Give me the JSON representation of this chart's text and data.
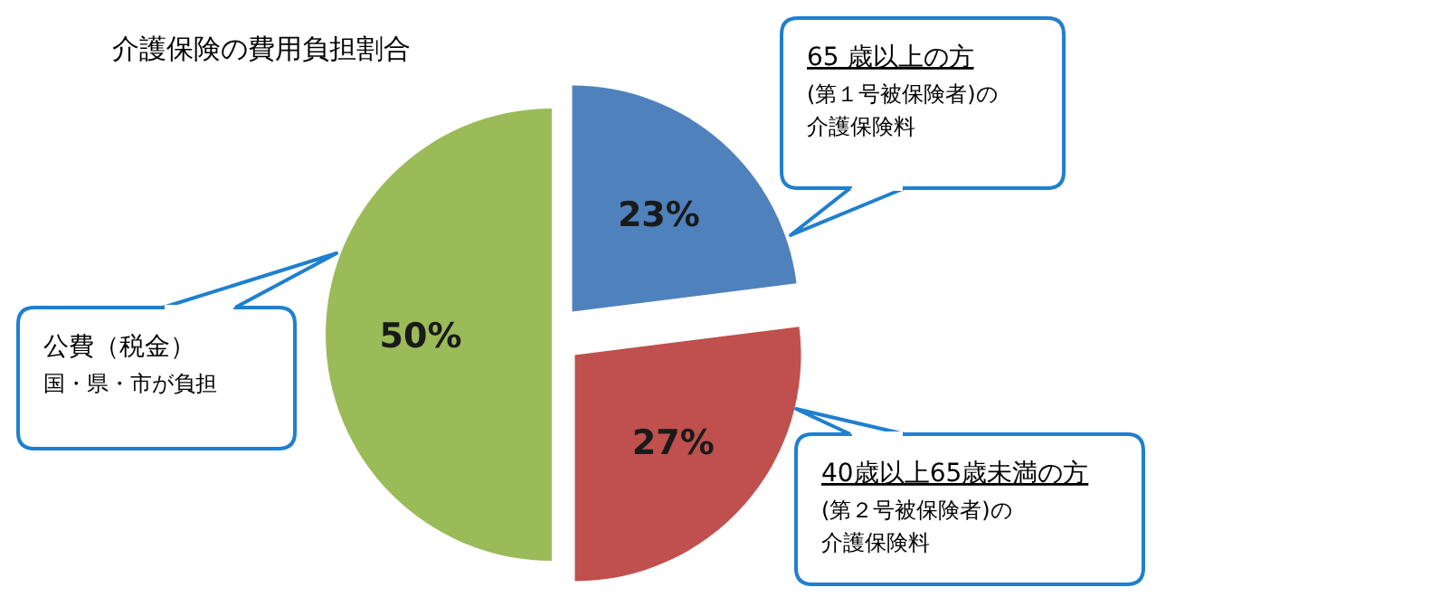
{
  "chart_data": {
    "type": "pie",
    "title": "介護保険の費用負担割合",
    "categories": [
      "65 歳以上の方(第１号被保険者)の介護保険料",
      "40歳以上65歳未満の方(第２号被保険者)の介護保険料",
      "公費（税金）国・県・市が負担"
    ],
    "values": [
      23,
      27,
      50
    ],
    "colors": [
      "#4f81bd",
      "#c0504d",
      "#9bbb59"
    ],
    "value_labels": [
      "23%",
      "27%",
      "50%"
    ]
  }
}
